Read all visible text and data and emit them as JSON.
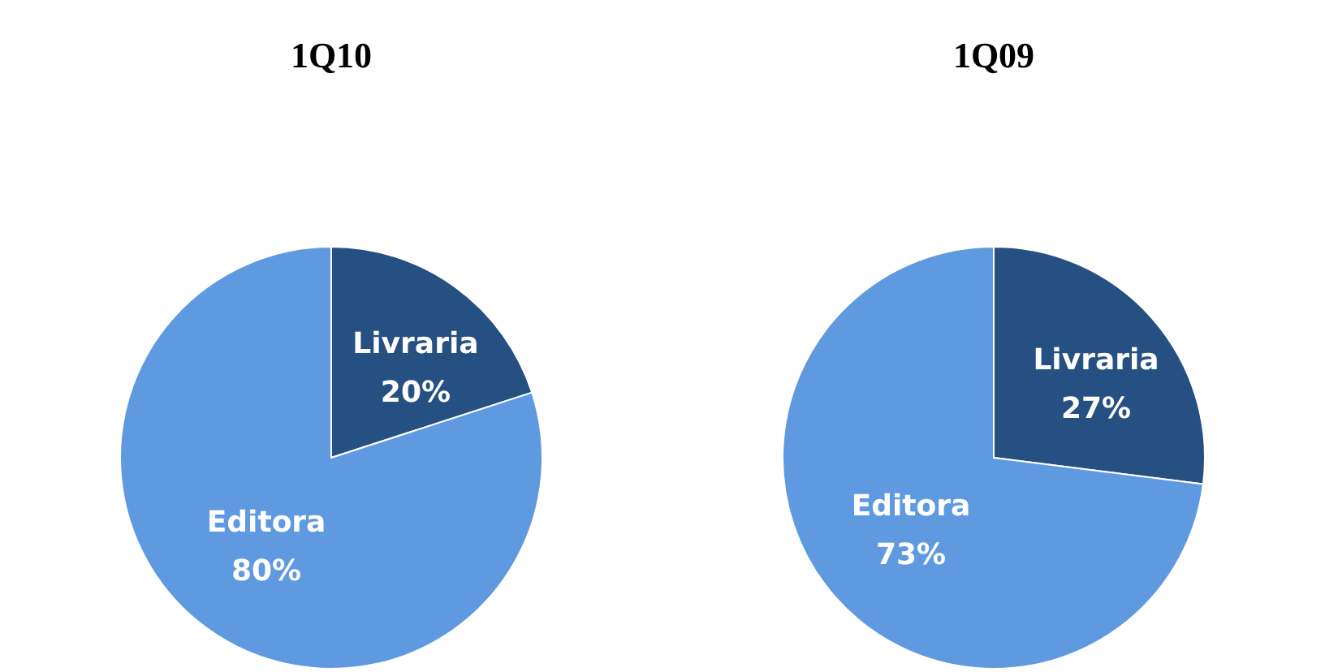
{
  "chart_data": [
    {
      "type": "pie",
      "title": "1Q10",
      "categories": [
        "Livraria",
        "Editora"
      ],
      "values": [
        20,
        80
      ],
      "colors": [
        "#264f82",
        "#5f9ae0"
      ],
      "value_labels": [
        "20%",
        "80%"
      ]
    },
    {
      "type": "pie",
      "title": "1Q09",
      "categories": [
        "Livraria",
        "Editora"
      ],
      "values": [
        27,
        73
      ],
      "colors": [
        "#264f82",
        "#5f9ae0"
      ],
      "value_labels": [
        "27%",
        "73%"
      ]
    }
  ]
}
